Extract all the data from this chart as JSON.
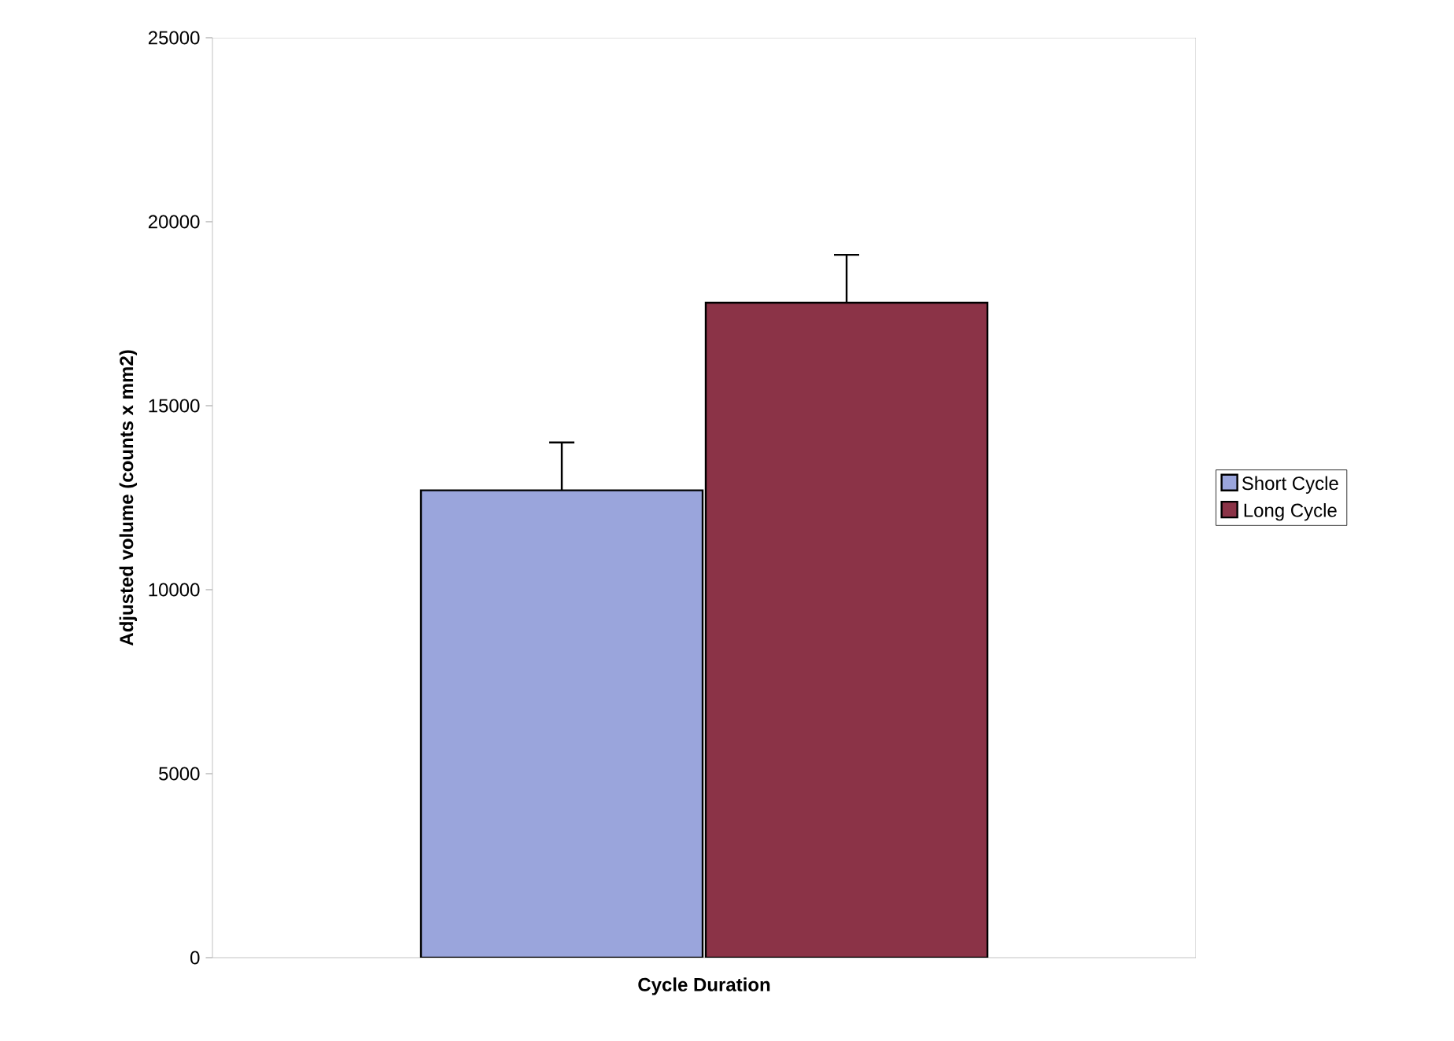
{
  "chart_data": {
    "type": "bar",
    "xlabel": "Cycle Duration",
    "ylabel": "Adjusted volume (counts x mm2)",
    "categories": [
      null
    ],
    "series": [
      {
        "name": "Short Cycle",
        "color": "#9aa5dc",
        "values": [
          12700
        ],
        "errors": [
          1300
        ]
      },
      {
        "name": "Long Cycle",
        "color": "#8b3347",
        "values": [
          17800
        ],
        "errors": [
          1300
        ]
      }
    ],
    "ylim": [
      0,
      25000
    ],
    "yticks": [
      0,
      5000,
      10000,
      15000,
      20000,
      25000
    ],
    "grid": false,
    "legend": "right"
  }
}
